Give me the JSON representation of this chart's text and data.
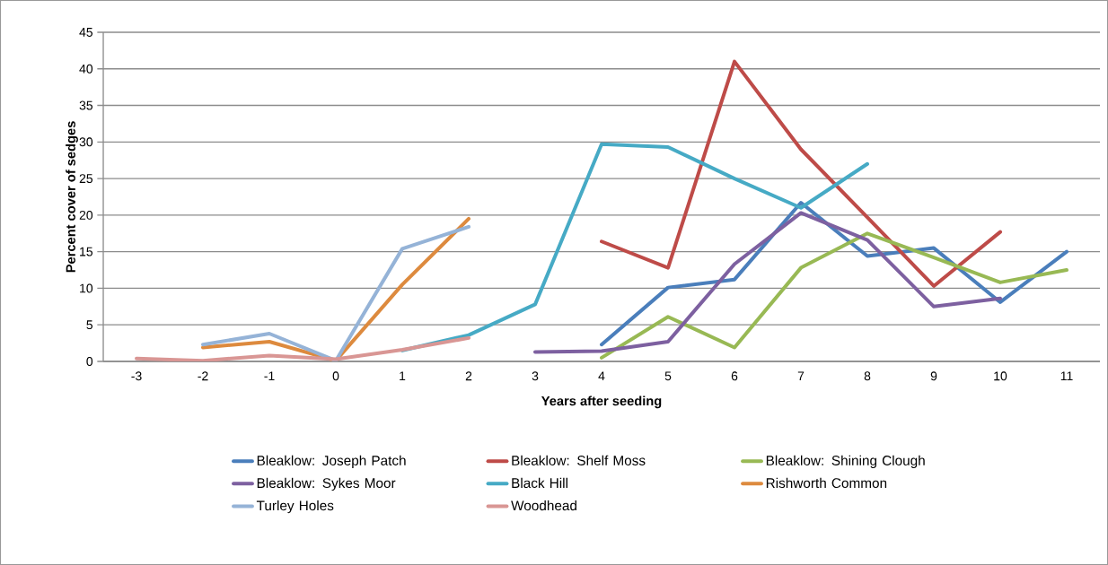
{
  "chart_data": {
    "type": "line",
    "xlabel": "Years after seeding",
    "ylabel": "Percent cover of sedges",
    "categories": [
      "-3",
      "-2",
      "-1",
      "0",
      "1",
      "2",
      "3",
      "4",
      "5",
      "6",
      "7",
      "8",
      "9",
      "10",
      "11"
    ],
    "ylim": [
      0,
      45
    ],
    "yticks": [
      0,
      5,
      10,
      15,
      20,
      25,
      30,
      35,
      40,
      45
    ],
    "grid": "y",
    "legend": "bottom",
    "marker": "none",
    "line_style": "solid",
    "series": [
      {
        "name": "Bleaklow: Joseph Patch",
        "color": "#4a7ebb",
        "values": [
          null,
          null,
          null,
          null,
          null,
          null,
          null,
          2.3,
          10.1,
          11.2,
          21.7,
          14.4,
          15.5,
          8.1,
          15.0
        ]
      },
      {
        "name": "Bleaklow: Shelf Moss",
        "color": "#be4b48",
        "values": [
          null,
          null,
          null,
          null,
          null,
          null,
          null,
          16.4,
          12.8,
          41.0,
          29.0,
          19.7,
          10.3,
          17.7,
          null
        ]
      },
      {
        "name": "Bleaklow: Shining Clough",
        "color": "#98b954",
        "values": [
          null,
          null,
          null,
          null,
          null,
          null,
          null,
          0.5,
          6.1,
          1.9,
          12.8,
          17.5,
          14.2,
          10.8,
          12.5
        ]
      },
      {
        "name": "Bleaklow: Sykes Moor",
        "color": "#7d60a0",
        "values": [
          null,
          null,
          null,
          null,
          null,
          null,
          1.3,
          1.4,
          2.7,
          13.3,
          20.3,
          16.6,
          7.5,
          8.6,
          null
        ]
      },
      {
        "name": "Black Hill",
        "color": "#46aac5",
        "values": [
          null,
          null,
          null,
          null,
          1.5,
          3.6,
          7.8,
          29.7,
          29.3,
          25.0,
          21.0,
          27.0,
          null,
          null,
          null
        ]
      },
      {
        "name": "Rishworth Common",
        "color": "#dd8a3e",
        "values": [
          null,
          1.9,
          2.7,
          0.1,
          10.5,
          19.5,
          null,
          null,
          null,
          null,
          null,
          null,
          null,
          null,
          null
        ]
      },
      {
        "name": "Turley Holes",
        "color": "#95b3d7",
        "values": [
          null,
          2.3,
          3.8,
          0.1,
          15.4,
          18.4,
          null,
          null,
          null,
          null,
          null,
          null,
          null,
          null,
          null
        ]
      },
      {
        "name": "Woodhead",
        "color": "#d99694",
        "values": [
          0.4,
          0.1,
          0.8,
          0.3,
          1.6,
          3.2,
          null,
          null,
          null,
          null,
          null,
          null,
          null,
          null,
          null
        ]
      }
    ]
  }
}
